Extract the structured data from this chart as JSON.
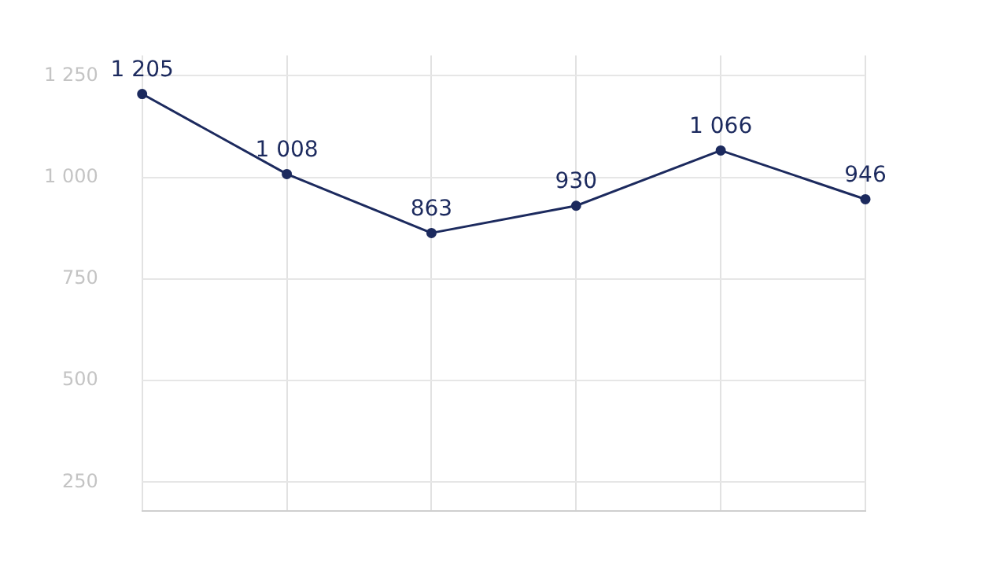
{
  "chart_data": {
    "type": "line",
    "categories": [
      null,
      null,
      null,
      null,
      null,
      null
    ],
    "series": [
      {
        "color": "#1c2a5e",
        "values": [
          1205,
          1008,
          863,
          930,
          1066,
          946
        ],
        "value_labels": [
          "1 205",
          "1 008",
          "863",
          "930",
          "1 066",
          "946"
        ]
      }
    ],
    "ylim": [
      180,
      1300
    ],
    "yticks": [
      {
        "value": 250,
        "label": "250"
      },
      {
        "value": 500,
        "label": "500"
      },
      {
        "value": 750,
        "label": "750"
      },
      {
        "value": 1000,
        "label": "1 000"
      },
      {
        "value": 1250,
        "label": "1 250"
      }
    ],
    "grid": true,
    "legend": false,
    "marker": "circle",
    "line_style": "solid",
    "tick_labels": "y"
  }
}
